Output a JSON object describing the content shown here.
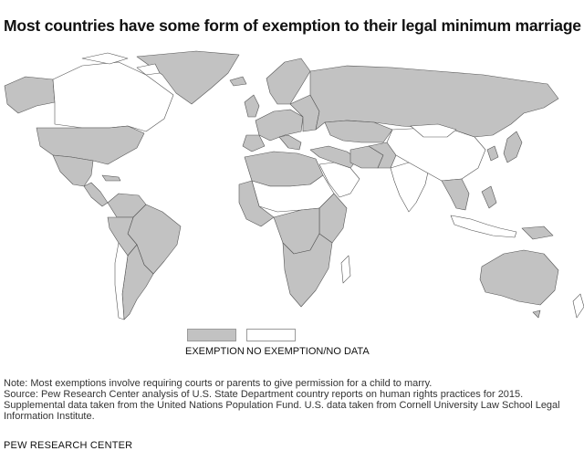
{
  "title": "Most countries have some form of exemption to their legal minimum marriage age",
  "legend": {
    "items": [
      {
        "label": "EXEMPTION",
        "color": "#c2c2c2"
      },
      {
        "label": "NO EXEMPTION/NO DATA",
        "color": "#ffffff"
      }
    ]
  },
  "notes": {
    "note": "Note: Most exemptions involve requiring courts or parents to give permission for a child to marry.",
    "source_1": "Source: Pew Research Center analysis of U.S. State Department country reports on human rights practices for 2015.",
    "source_2": "Supplemental data taken from the United Nations Population Fund. U.S. data taken from Cornell University Law School Legal",
    "source_3": "Information Institute."
  },
  "brand": "PEW RESEARCH CENTER",
  "map": {
    "colors": {
      "exemption": "#c2c2c2",
      "no_exemption": "#ffffff",
      "border": "#555555"
    }
  }
}
